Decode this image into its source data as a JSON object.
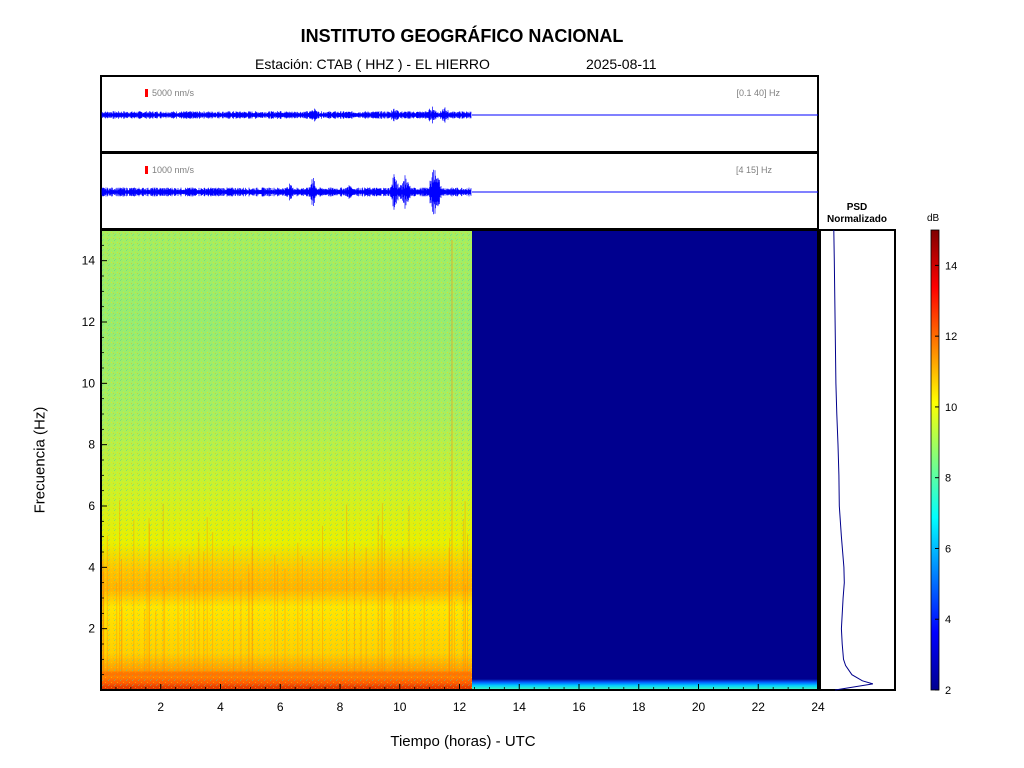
{
  "header": {
    "title": "INSTITUTO GEOGRÁFICO NACIONAL",
    "station": "Estación:  CTAB ( HHZ ) - EL HIERRO",
    "date": "2025-08-11"
  },
  "colors": {
    "trace": "#0000ff",
    "scale_marker": "#ff0000",
    "no_data_background": "#00008f",
    "psd_line": "#00008b"
  },
  "chart_data": [
    {
      "type": "line",
      "panel": "broadband seismogram",
      "scale_label": "5000 nm/s",
      "filter_label": "[0.1 40] Hz",
      "data_end_hour": 12.4,
      "xlim": [
        0,
        24
      ]
    },
    {
      "type": "line",
      "panel": "filtered seismogram",
      "scale_label": "1000 nm/s",
      "filter_label": "[4 15] Hz",
      "data_end_hour": 12.4,
      "xlim": [
        0,
        24
      ]
    },
    {
      "type": "heatmap",
      "panel": "spectrogram",
      "xlabel": "Tiempo (horas) - UTC",
      "ylabel": "Frecuencia  (Hz)",
      "xlim": [
        0,
        24
      ],
      "ylim": [
        0,
        15
      ],
      "x_ticks": [
        2,
        4,
        6,
        8,
        10,
        12,
        14,
        16,
        18,
        20,
        22,
        24
      ],
      "y_ticks": [
        2,
        4,
        6,
        8,
        10,
        12,
        14
      ],
      "data_end_hour": 12.4,
      "colorbar": {
        "label": "dB",
        "range": [
          2,
          15
        ],
        "ticks": [
          2,
          4,
          6,
          8,
          10,
          12,
          14
        ],
        "colormap": "jet"
      },
      "dominant_levels_db": [
        {
          "band_hz": [
            0,
            0.6
          ],
          "level": 12.5
        },
        {
          "band_hz": [
            0.6,
            3
          ],
          "level": 10.5
        },
        {
          "band_hz": [
            3,
            4
          ],
          "level": 11
        },
        {
          "band_hz": [
            4,
            9
          ],
          "level": 9.5
        },
        {
          "band_hz": [
            9,
            15
          ],
          "level": 8.7
        }
      ]
    },
    {
      "type": "line",
      "panel": "psd",
      "title": "PSD\nNormalizado",
      "freq_hz": [
        0,
        0.2,
        0.3,
        0.5,
        0.8,
        1,
        1.5,
        2,
        3,
        3.5,
        4,
        5,
        6,
        7,
        8,
        9,
        10,
        11,
        12,
        13,
        14,
        15
      ],
      "values": [
        0.05,
        0.95,
        0.7,
        0.45,
        0.3,
        0.25,
        0.22,
        0.2,
        0.24,
        0.27,
        0.26,
        0.2,
        0.15,
        0.14,
        0.12,
        0.09,
        0.07,
        0.06,
        0.05,
        0.04,
        0.03,
        0.02
      ]
    }
  ]
}
